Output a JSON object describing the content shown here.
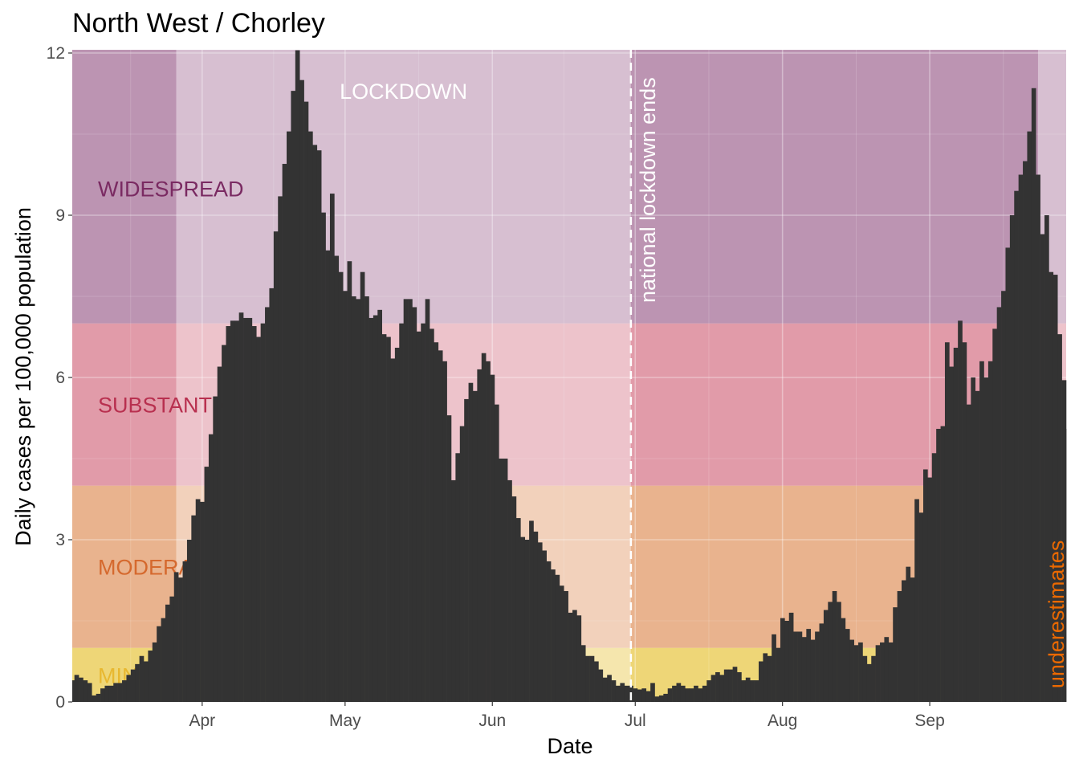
{
  "chart_data": {
    "type": "bar",
    "title": "North West / Chorley",
    "xlabel": "Date",
    "ylabel": "Daily cases per 100,000 population",
    "ylim": [
      0,
      12
    ],
    "yticks": [
      0,
      3,
      6,
      9,
      12
    ],
    "x_range": [
      0,
      229.5
    ],
    "x_ticks": [
      {
        "label": "Apr",
        "day": 30
      },
      {
        "label": "May",
        "day": 63
      },
      {
        "label": "Jun",
        "day": 97
      },
      {
        "label": "Jul",
        "day": 130
      },
      {
        "label": "Aug",
        "day": 164
      },
      {
        "label": "Sep",
        "day": 198
      }
    ],
    "grid": true,
    "bar_color": "#333333",
    "values": [
      0.4,
      0.5,
      0.45,
      0.4,
      0.35,
      0.12,
      0.15,
      0.25,
      0.3,
      0.3,
      0.35,
      0.35,
      0.4,
      0.5,
      0.6,
      0.7,
      0.85,
      0.75,
      0.95,
      1.1,
      1.4,
      1.55,
      1.8,
      1.95,
      2.4,
      2.3,
      2.6,
      3.0,
      3.45,
      3.75,
      3.7,
      4.35,
      4.95,
      5.65,
      6.2,
      6.6,
      6.95,
      7.05,
      7.05,
      7.2,
      7.1,
      7.1,
      6.95,
      6.75,
      7.0,
      7.3,
      7.65,
      8.7,
      9.35,
      9.95,
      10.55,
      11.3,
      12.05,
      11.5,
      11.1,
      10.55,
      10.3,
      10.2,
      9.05,
      8.35,
      9.4,
      8.25,
      7.95,
      7.6,
      8.15,
      7.5,
      7.45,
      7.95,
      7.5,
      7.1,
      7.15,
      7.25,
      6.8,
      6.75,
      6.35,
      6.55,
      7.0,
      7.45,
      7.45,
      7.3,
      6.85,
      7.0,
      7.45,
      6.9,
      6.65,
      6.5,
      6.3,
      5.3,
      4.1,
      4.6,
      5.1,
      5.6,
      5.9,
      5.75,
      6.15,
      6.45,
      6.3,
      6.05,
      5.5,
      4.5,
      4.5,
      4.1,
      3.8,
      3.4,
      3.05,
      3.0,
      3.35,
      3.15,
      2.95,
      2.8,
      2.6,
      2.45,
      2.35,
      2.15,
      2.05,
      1.65,
      1.7,
      1.6,
      1.05,
      0.85,
      0.85,
      0.75,
      0.6,
      0.45,
      0.5,
      0.4,
      0.3,
      0.35,
      0.3,
      0.3,
      0.25,
      0.23,
      0.25,
      0.2,
      0.35,
      0.1,
      0.12,
      0.15,
      0.25,
      0.3,
      0.35,
      0.3,
      0.25,
      0.25,
      0.3,
      0.25,
      0.3,
      0.4,
      0.5,
      0.55,
      0.5,
      0.6,
      0.6,
      0.65,
      0.55,
      0.4,
      0.45,
      0.4,
      0.4,
      0.75,
      0.9,
      0.85,
      1.25,
      1.0,
      1.55,
      1.5,
      1.65,
      1.3,
      1.3,
      1.2,
      1.35,
      1.15,
      1.3,
      1.45,
      1.7,
      1.85,
      2.05,
      1.85,
      1.55,
      1.35,
      1.15,
      1.05,
      1.1,
      0.85,
      0.7,
      0.85,
      1.05,
      1.1,
      1.2,
      1.1,
      1.75,
      2.05,
      2.25,
      2.5,
      2.3,
      3.75,
      3.5,
      4.3,
      4.15,
      4.6,
      5.05,
      5.1,
      6.65,
      6.2,
      6.55,
      7.05,
      6.65,
      5.5,
      6.0,
      5.75,
      6.3,
      6.0,
      6.3,
      6.9,
      7.3,
      7.6,
      8.4,
      9.0,
      9.45,
      9.75,
      10.0,
      10.55,
      11.35,
      9.75,
      8.65,
      9.0,
      7.95,
      7.9,
      6.8,
      5.95,
      5.05
    ]
  },
  "bands": [
    {
      "label": "MINOR",
      "from": 0,
      "to": 1,
      "color": "#E8C84A",
      "label_color": "#E8B830"
    },
    {
      "label": "MODERATE",
      "from": 1,
      "to": 4,
      "color": "#E29968",
      "label_color": "#D5692E"
    },
    {
      "label": "SUBSTANTIAL",
      "from": 4,
      "to": 7,
      "color": "#D77A8C",
      "label_color": "#B8304F"
    },
    {
      "label": "WIDESPREAD",
      "from": 7,
      "to": 12,
      "color": "#A57098",
      "label_color": "#7A2A62"
    }
  ],
  "lockdown_label": "LOCKDOWN",
  "lockdown_period": [
    24,
    129
  ],
  "underestimate_after_day": 223,
  "event_line_day": 129,
  "event_line_label": "national lockdown ends",
  "underestimates_label": "underestimates",
  "underestimates_color": "#EB6900",
  "highlight_overlay": "#FFFFFF"
}
